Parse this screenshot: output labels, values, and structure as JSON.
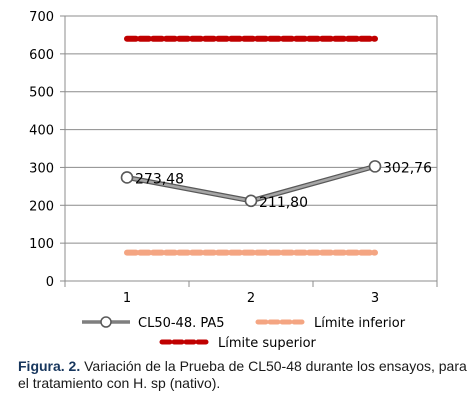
{
  "chart_data": {
    "type": "line",
    "categories": [
      "1",
      "2",
      "3"
    ],
    "ylim": [
      0,
      700
    ],
    "y_ticks": [
      0,
      100,
      200,
      300,
      400,
      500,
      600,
      700
    ],
    "grid": true,
    "legend_position": "bottom",
    "series": [
      {
        "name": "CL50-48. PA5",
        "values": [
          273.48,
          211.8,
          302.76
        ],
        "data_labels": [
          "273,48",
          "211,80",
          "302,76"
        ],
        "color": "#7f7f7f",
        "marker": "circle"
      },
      {
        "name": "Límite inferior",
        "values": [
          75,
          75,
          75
        ],
        "color": "#f4a582",
        "dash": true
      },
      {
        "name": "Límite superior",
        "values": [
          640,
          640,
          640
        ],
        "color": "#c00000",
        "dash": true
      }
    ]
  },
  "caption": {
    "lead": "Figura. 2.",
    "text": " Variación de la Prueba de CL50-48 durante los ensayos, para el tratamiento con H. sp (nativo)."
  }
}
